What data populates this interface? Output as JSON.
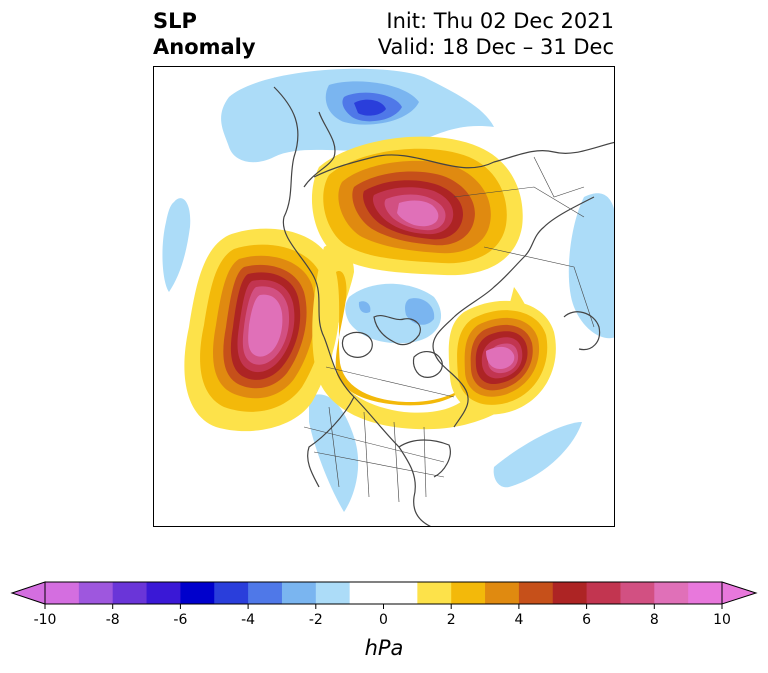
{
  "header": {
    "left_line1": "SLP",
    "left_line2": "Anomaly",
    "right_line1": "Init: Thu 02 Dec 2021",
    "right_line2": "Valid: 18 Dec – 31 Dec"
  },
  "colorbar": {
    "unit": "hPa",
    "tick_labels": [
      "-10",
      "-8",
      "-6",
      "-4",
      "-2",
      "0",
      "2",
      "4",
      "6",
      "8",
      "10"
    ],
    "colors": [
      "#d46ee0",
      "#9e57de",
      "#6a35d8",
      "#3a18d6",
      "#0000cc",
      "#2a3edb",
      "#4f78e8",
      "#7ab5f0",
      "#acdcf8",
      "#ffffff",
      "#ffffff",
      "#fde24a",
      "#f3b90a",
      "#e08a10",
      "#c6501a",
      "#ad2424",
      "#c23550",
      "#d25082",
      "#e070b8",
      "#e878dc"
    ],
    "extend": "both"
  },
  "map": {
    "projection": "north-polar-stereographic",
    "features": [
      "coastlines",
      "country-borders",
      "state-borders",
      "anomaly-contours"
    ]
  }
}
